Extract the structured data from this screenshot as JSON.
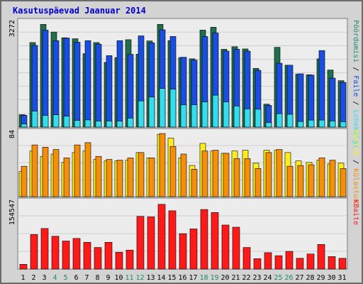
{
  "title": "Kasutuspäevad Jaanuar 2014",
  "colors": {
    "background": "#d3d3d3",
    "plot_bg": "#ececec",
    "grid": "#b0b0b0",
    "pages": "#206f4c",
    "files": "#1a4ee0",
    "visits": "#f58e0b",
    "hosts": "#ffee1a",
    "kbytes": "#ff1a1a",
    "page_visits_inner": "#33ddee",
    "weekend": "#1e8c64",
    "weekday": "#000000"
  },
  "chart_data": [
    {
      "type": "bar",
      "name": "panel-hits",
      "ymax_label": "3272",
      "right_label_parts": [
        {
          "text": "Pöördumisi",
          "color": "#1e8c64"
        },
        {
          "text": " / ",
          "color": "#000000"
        },
        {
          "text": "Faile",
          "color": "#1a4ee0"
        },
        {
          "text": " / ",
          "color": "#000000"
        },
        {
          "text": "Lehekülgi",
          "color": "#33ddee"
        }
      ],
      "categories": [
        "1",
        "2",
        "3",
        "4",
        "5",
        "6",
        "7",
        "8",
        "9",
        "10",
        "11",
        "12",
        "13",
        "14",
        "15",
        "16",
        "17",
        "18",
        "19",
        "20",
        "21",
        "22",
        "23",
        "24",
        "25",
        "26",
        "27",
        "28",
        "29",
        "30",
        "31"
      ],
      "ylim": [
        0,
        3272
      ],
      "series": [
        {
          "name": "Pöördumisi",
          "values": [
            390,
            2650,
            3220,
            2980,
            2800,
            2770,
            2300,
            2650,
            2030,
            2180,
            2740,
            2285,
            2700,
            3220,
            2710,
            2180,
            2140,
            3040,
            3130,
            2440,
            2520,
            2450,
            1840,
            720,
            2500,
            1940,
            1660,
            1640,
            2140,
            1790,
            1455
          ]
        },
        {
          "name": "Faile",
          "values": [
            370,
            2560,
            3040,
            2710,
            2790,
            2660,
            2710,
            2600,
            2240,
            2710,
            2280,
            2860,
            2640,
            3050,
            2840,
            2190,
            2100,
            2840,
            2950,
            2380,
            2440,
            2380,
            1780,
            680,
            2000,
            1940,
            1670,
            1630,
            2400,
            1535,
            1400
          ]
        },
        {
          "name": "Lehekülgi",
          "values": [
            98,
            500,
            365,
            385,
            340,
            210,
            225,
            190,
            190,
            188,
            280,
            820,
            940,
            1210,
            1190,
            700,
            700,
            790,
            1000,
            790,
            660,
            570,
            560,
            140,
            420,
            400,
            175,
            220,
            220,
            190,
            170
          ]
        }
      ]
    },
    {
      "type": "bar",
      "name": "panel-visits",
      "ymax_label": "84",
      "right_label_parts": [
        {
          "text": "Hostid",
          "color": "#ffee1a"
        },
        {
          "text": " / ",
          "color": "#000000"
        },
        {
          "text": "Külastusi",
          "color": "#f58e0b"
        }
      ],
      "categories": [
        "1",
        "2",
        "3",
        "4",
        "5",
        "6",
        "7",
        "8",
        "9",
        "10",
        "11",
        "12",
        "13",
        "14",
        "15",
        "16",
        "17",
        "18",
        "19",
        "20",
        "21",
        "22",
        "23",
        "24",
        "25",
        "26",
        "27",
        "28",
        "29",
        "30",
        "31"
      ],
      "ylim": [
        0,
        84
      ],
      "series": [
        {
          "name": "Hostid",
          "values": [
            33,
            60,
            53,
            56,
            45,
            58,
            60,
            49,
            47,
            47,
            48,
            58,
            51,
            82,
            77,
            51,
            41,
            70,
            60,
            57,
            60,
            61,
            44,
            61,
            61,
            58,
            47,
            45,
            48,
            43,
            44
          ]
        },
        {
          "name": "Külastusi",
          "values": [
            40,
            68,
            65,
            62,
            51,
            68,
            71,
            53,
            49,
            48,
            51,
            58,
            51,
            83,
            66,
            56,
            36,
            60,
            61,
            57,
            50,
            50,
            37,
            58,
            62,
            40,
            41,
            42,
            51,
            48,
            37
          ]
        }
      ]
    },
    {
      "type": "bar",
      "name": "panel-kbytes",
      "ymax_label": "154547",
      "right_label_parts": [
        {
          "text": "KBaite",
          "color": "#ff1a1a"
        }
      ],
      "categories": [
        "1",
        "2",
        "3",
        "4",
        "5",
        "6",
        "7",
        "8",
        "9",
        "10",
        "11",
        "12",
        "13",
        "14",
        "15",
        "16",
        "17",
        "18",
        "19",
        "20",
        "21",
        "22",
        "23",
        "24",
        "25",
        "26",
        "27",
        "28",
        "29",
        "30",
        "31"
      ],
      "ylim": [
        0,
        154547
      ],
      "series": [
        {
          "name": "KBaite",
          "values": [
            11000,
            80000,
            94000,
            76000,
            65000,
            71000,
            62000,
            50000,
            62000,
            39000,
            44000,
            122000,
            121000,
            150000,
            135000,
            82000,
            93000,
            138000,
            131000,
            102000,
            97000,
            50000,
            24000,
            38000,
            31000,
            41000,
            25000,
            35000,
            57000,
            29000,
            25000
          ]
        }
      ]
    }
  ]
}
